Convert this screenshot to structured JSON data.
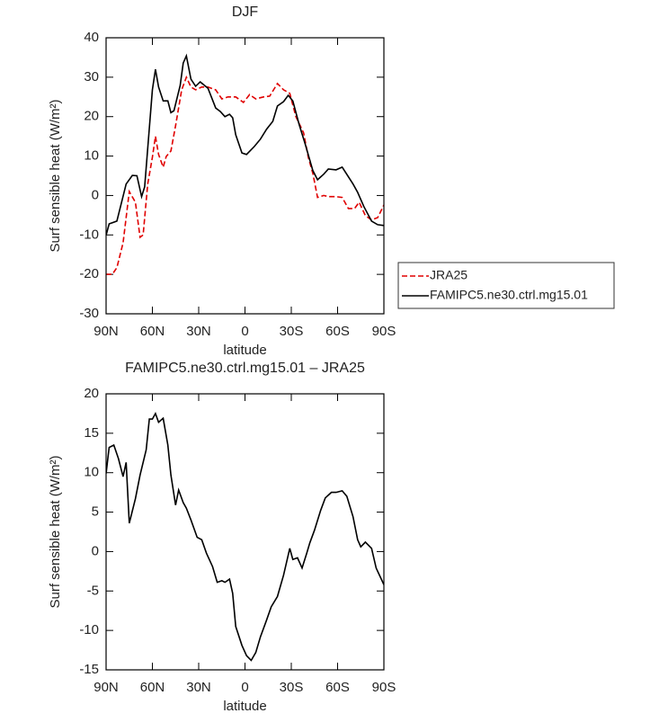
{
  "chart_data": [
    {
      "type": "line",
      "title": "DJF",
      "xlabel": "latitude",
      "ylabel": "Surf sensible heat (W/m²)",
      "xlim": [
        90,
        -90
      ],
      "xticks": [
        {
          "value": 90,
          "label": "90N"
        },
        {
          "value": 60,
          "label": "60N"
        },
        {
          "value": 30,
          "label": "30N"
        },
        0,
        {
          "value": -30,
          "label": "30S"
        },
        {
          "value": -60,
          "label": "60S"
        },
        {
          "value": -90,
          "label": "90S"
        }
      ],
      "ylim": [
        -30,
        40
      ],
      "yticks": [
        -30,
        -20,
        -10,
        0,
        10,
        20,
        30,
        40
      ],
      "legend": "right",
      "series": [
        {
          "name": "JRA25",
          "color": "#e00000",
          "dash": true,
          "x": [
            90,
            86,
            83,
            79,
            75,
            71,
            68,
            66,
            63,
            60,
            58,
            56,
            53,
            51,
            48,
            45,
            41,
            38,
            35,
            32,
            28,
            24,
            19,
            15,
            11,
            6,
            1,
            -3,
            -7,
            -12,
            -16,
            -21,
            -25,
            -29,
            -33,
            -38,
            -41,
            -44,
            -47,
            -51,
            -54,
            -59,
            -63,
            -67,
            -71,
            -74,
            -78,
            -82,
            -86,
            -90
          ],
          "values": [
            -20,
            -20,
            -18.3,
            -12,
            1,
            -1.7,
            -10.6,
            -10,
            2.9,
            9.7,
            15,
            10.4,
            7.2,
            9.9,
            11.3,
            17.7,
            26.8,
            30,
            27.5,
            26.8,
            27.5,
            27.5,
            26.8,
            24.5,
            25,
            25,
            23.6,
            25.6,
            24.5,
            25,
            25.2,
            28.4,
            26.8,
            25.9,
            20,
            15.9,
            9.7,
            5.6,
            -0.5,
            0,
            -0.3,
            -0.3,
            -0.5,
            -3.3,
            -3.3,
            -1.7,
            -5.1,
            -6.2,
            -5.6,
            -2.4
          ]
        },
        {
          "name": "FAMIPC5.ne30.ctrl.mg15.01",
          "color": "#000000",
          "dash": false,
          "x": [
            90,
            88,
            83,
            77,
            73,
            70,
            67,
            65,
            60,
            58,
            56,
            53,
            50,
            48,
            46,
            42,
            40,
            38,
            35,
            32,
            29,
            24,
            19,
            16,
            13,
            10,
            8,
            6,
            2,
            -1,
            -6,
            -10,
            -14,
            -18,
            -21,
            -25,
            -28,
            -31,
            -35,
            -39,
            -44,
            -47,
            -51,
            -54,
            -59,
            -63,
            -70,
            -73,
            -77,
            -82,
            -86,
            -90
          ],
          "values": [
            -10.1,
            -7.2,
            -6.5,
            2.9,
            5.1,
            5,
            -0.3,
            2.2,
            26.8,
            32,
            27.5,
            24,
            24,
            21,
            21.5,
            27.9,
            33.6,
            35.4,
            29.5,
            27.7,
            28.8,
            27.2,
            22.2,
            21.3,
            20,
            20.6,
            19.7,
            15.4,
            10.8,
            10.4,
            12.4,
            14.3,
            16.8,
            18.8,
            22.7,
            23.8,
            25.4,
            24,
            18.1,
            13.1,
            6.3,
            4,
            5.4,
            6.7,
            6.5,
            7.2,
            2.9,
            0.8,
            -2.8,
            -6.5,
            -7.4,
            -7.6
          ]
        }
      ]
    },
    {
      "type": "line",
      "title": "FAMIPC5.ne30.ctrl.mg15.01 – JRA25",
      "xlabel": "latitude",
      "ylabel": "Surf sensible heat (W/m²)",
      "xlim": [
        90,
        -90
      ],
      "xticks": [
        {
          "value": 90,
          "label": "90N"
        },
        {
          "value": 60,
          "label": "60N"
        },
        {
          "value": 30,
          "label": "30N"
        },
        0,
        {
          "value": -30,
          "label": "30S"
        },
        {
          "value": -60,
          "label": "60S"
        },
        {
          "value": -90,
          "label": "90S"
        }
      ],
      "ylim": [
        -15,
        20
      ],
      "yticks": [
        -15,
        -10,
        -5,
        0,
        5,
        10,
        15,
        20
      ],
      "series": [
        {
          "color": "#000000",
          "dash": false,
          "x": [
            90,
            88,
            85,
            82,
            79,
            77,
            75,
            71,
            68,
            64,
            62,
            60,
            58,
            56,
            53,
            50,
            48,
            45,
            43,
            40,
            38,
            35,
            31,
            28,
            25,
            21,
            18,
            15,
            13,
            10,
            8,
            6,
            2,
            -1,
            -4,
            -7,
            -10,
            -14,
            -17,
            -21,
            -25,
            -29,
            -31,
            -34,
            -37,
            -40,
            -42,
            -45,
            -49,
            -52,
            -56,
            -59,
            -63,
            -66,
            -70,
            -73,
            -75,
            -78,
            -82,
            -85,
            -90
          ],
          "values": [
            9.9,
            13.2,
            13.5,
            11.8,
            9.5,
            11.3,
            3.6,
            6.7,
            9.7,
            12.9,
            16.8,
            16.8,
            17.5,
            16.4,
            16.9,
            13.5,
            9.7,
            5.9,
            7.8,
            6.2,
            5.5,
            4,
            1.8,
            1.5,
            -0.2,
            -1.9,
            -3.9,
            -3.7,
            -3.9,
            -3.5,
            -5.3,
            -9.5,
            -11.9,
            -13.2,
            -13.8,
            -12.8,
            -10.8,
            -8.7,
            -7,
            -5.7,
            -3,
            0.4,
            -1,
            -0.8,
            -2.1,
            -0.2,
            1.1,
            2.7,
            5.2,
            6.8,
            7.5,
            7.5,
            7.7,
            7,
            4.4,
            1.5,
            0.6,
            1.2,
            0.4,
            -2.1,
            -4.2
          ]
        }
      ]
    }
  ]
}
